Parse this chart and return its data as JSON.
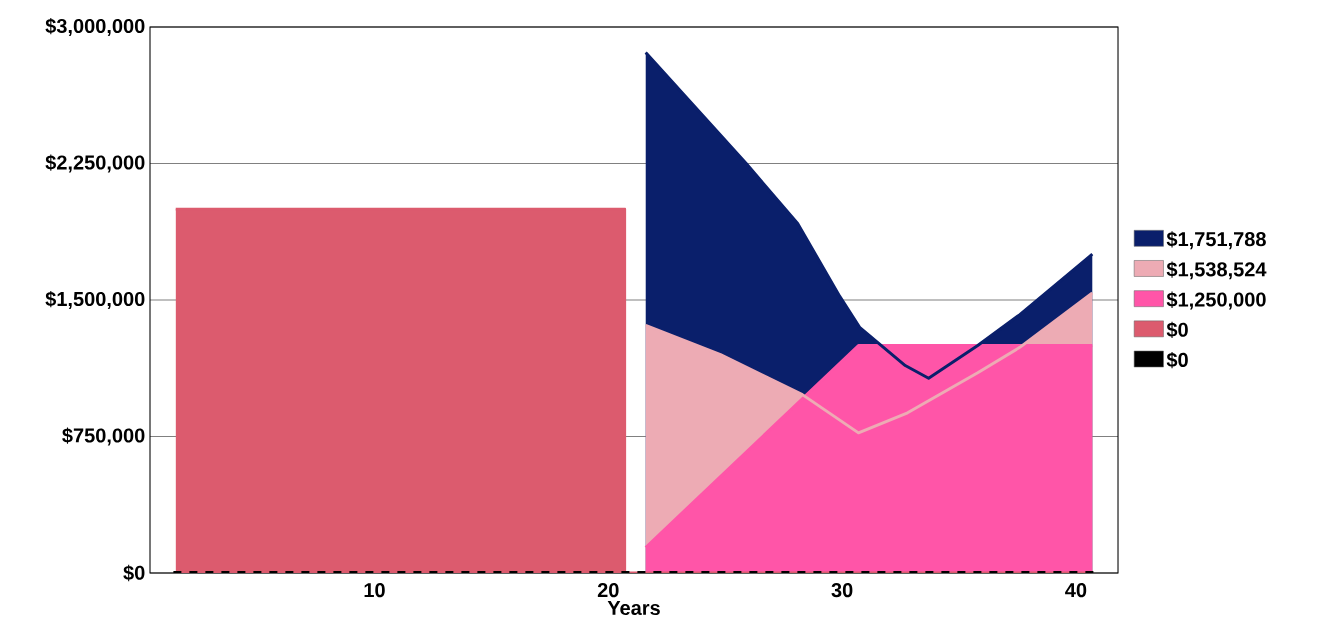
{
  "chart_data": {
    "type": "area",
    "xlabel": "Years",
    "xlim": [
      0.4,
      41.8
    ],
    "xticks": [
      10,
      20,
      30,
      40
    ],
    "ylim": [
      0,
      3000000
    ],
    "yticks": [
      {
        "value": 0,
        "label": "$0"
      },
      {
        "value": 750000,
        "label": "$750,000"
      },
      {
        "value": 1500000,
        "label": "$1,500,000"
      },
      {
        "value": 2250000,
        "label": "$2,250,000"
      },
      {
        "value": 3000000,
        "label": "$3,000,000"
      }
    ],
    "grid": "y",
    "legend": "right",
    "series": [
      {
        "name": "$1,751,788",
        "color": "#0a1f6b",
        "x": [
          21.6,
          25.9,
          28.1,
          29.9,
          30.75,
          32.7,
          33.7,
          35.8,
          37.6,
          40.7
        ],
        "values": [
          2860000,
          2250000,
          1920000,
          1520000,
          1350000,
          1140000,
          1070000,
          1250000,
          1420000,
          1751788
        ]
      },
      {
        "name": "$1,538,524",
        "color": "#edabb4",
        "x": [
          21.6,
          24.8,
          28.3,
          30.7,
          32.8,
          35.8,
          37.6,
          40.7
        ],
        "values": [
          1360000,
          1200000,
          980000,
          770000,
          880000,
          1100000,
          1240000,
          1538524
        ]
      },
      {
        "name": "$1,250,000",
        "color": "#ff55a8",
        "x": [
          21.6,
          30.7,
          40.7
        ],
        "values": [
          140000,
          1250000,
          1250000
        ]
      },
      {
        "name": "$0",
        "color": "#dc5b6e",
        "x": [
          1.5,
          20.7,
          20.7,
          40.7
        ],
        "values": [
          2000000,
          2000000,
          0,
          0
        ]
      },
      {
        "name": "$0",
        "color": "#000000",
        "type": "line",
        "line_style": "dashed",
        "x": [
          1.4,
          40.9
        ],
        "values": [
          0,
          0
        ]
      }
    ]
  }
}
